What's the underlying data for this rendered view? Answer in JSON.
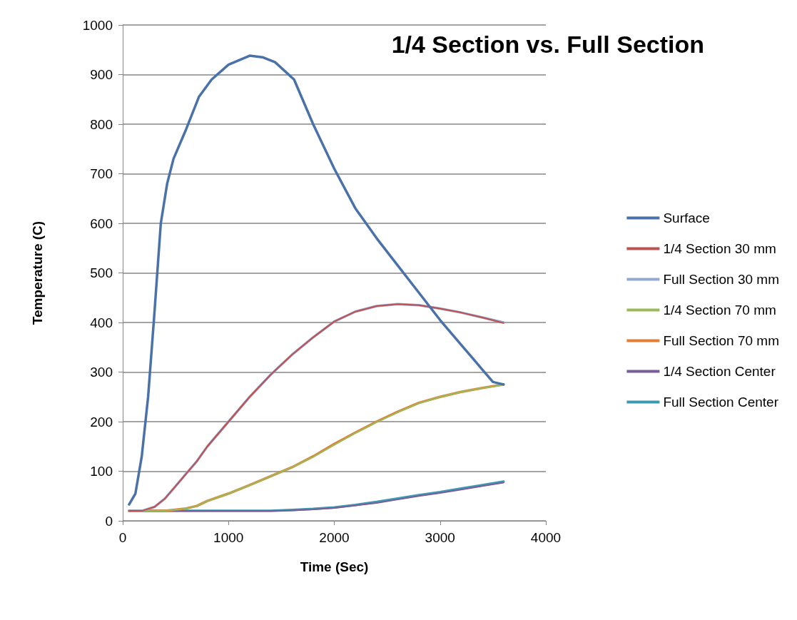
{
  "chart_data": {
    "type": "line",
    "title": "1/4 Section vs. Full Section",
    "xlabel": "Time (Sec)",
    "ylabel": "Temperature (C)",
    "xlim": [
      0,
      4000
    ],
    "xticks": [
      0,
      1000,
      2000,
      3000,
      4000
    ],
    "ylim": [
      0,
      1000
    ],
    "yticks": [
      0,
      100,
      200,
      300,
      400,
      500,
      600,
      700,
      800,
      900,
      1000
    ],
    "grid": "y",
    "legend": "right",
    "marker": "none",
    "line_style": "solid",
    "series": [
      {
        "name": "Surface",
        "color": "#4a72a8",
        "x": [
          60,
          120,
          180,
          240,
          300,
          360,
          420,
          480,
          600,
          720,
          840,
          1000,
          1200,
          1320,
          1440,
          1620,
          1800,
          2000,
          2200,
          2400,
          2600,
          2800,
          3000,
          3200,
          3400,
          3500,
          3600
        ],
        "values": [
          33,
          55,
          130,
          250,
          420,
          600,
          680,
          730,
          790,
          855,
          890,
          920,
          938,
          935,
          925,
          890,
          800,
          710,
          630,
          570,
          515,
          460,
          405,
          355,
          305,
          280,
          275
        ]
      },
      {
        "name": "1/4 Section 30 mm",
        "color": "#c0504d",
        "x": [
          60,
          180,
          300,
          400,
          500,
          600,
          700,
          800,
          1000,
          1200,
          1400,
          1600,
          1800,
          2000,
          2200,
          2400,
          2600,
          2800,
          3000,
          3200,
          3400,
          3600
        ],
        "values": [
          20,
          20,
          28,
          45,
          70,
          95,
          120,
          150,
          200,
          250,
          295,
          335,
          370,
          402,
          422,
          433,
          437,
          435,
          428,
          420,
          410,
          399
        ]
      },
      {
        "name": "Full Section 30 mm",
        "color": "#95a9cf",
        "x": [
          60,
          180,
          300,
          400,
          500,
          600,
          700,
          800,
          1000,
          1200,
          1400,
          1600,
          1800,
          2000,
          2200,
          2400,
          2600,
          2800,
          3000,
          3200,
          3400,
          3600
        ],
        "values": [
          20,
          20,
          28,
          45,
          70,
          95,
          120,
          150,
          200,
          250,
          295,
          335,
          370,
          402,
          422,
          433,
          437,
          435,
          428,
          420,
          410,
          400
        ]
      },
      {
        "name": "1/4 Section 70 mm",
        "color": "#9bbb59",
        "x": [
          60,
          400,
          600,
          700,
          800,
          1000,
          1200,
          1400,
          1600,
          1800,
          2000,
          2200,
          2400,
          2600,
          2800,
          3000,
          3200,
          3400,
          3600
        ],
        "values": [
          20,
          20,
          25,
          30,
          40,
          55,
          72,
          90,
          108,
          129,
          153,
          177,
          199,
          219,
          237,
          250,
          260,
          268,
          274
        ]
      },
      {
        "name": "Full Section 70 mm",
        "color": "#e07f35",
        "x": [
          60,
          400,
          600,
          700,
          800,
          1000,
          1200,
          1400,
          1600,
          1800,
          2000,
          2200,
          2400,
          2600,
          2800,
          3000,
          3200,
          3400,
          3600
        ],
        "values": [
          20,
          20,
          25,
          30,
          40,
          55,
          72,
          90,
          108,
          130,
          155,
          178,
          200,
          220,
          238,
          250,
          260,
          268,
          275
        ]
      },
      {
        "name": "1/4 Section Center",
        "color": "#7a5c9a",
        "x": [
          60,
          1400,
          1600,
          1800,
          2000,
          2200,
          2400,
          2600,
          2800,
          3000,
          3200,
          3400,
          3600
        ],
        "values": [
          20,
          20,
          21,
          23,
          26,
          31,
          36,
          43,
          50,
          56,
          63,
          70,
          77
        ]
      },
      {
        "name": "Full Section Center",
        "color": "#3d99b0",
        "x": [
          60,
          1400,
          1600,
          1800,
          2000,
          2200,
          2400,
          2600,
          2800,
          3000,
          3200,
          3400,
          3600
        ],
        "values": [
          20,
          20,
          22,
          24,
          27,
          32,
          38,
          45,
          52,
          58,
          65,
          72,
          79
        ]
      }
    ]
  }
}
